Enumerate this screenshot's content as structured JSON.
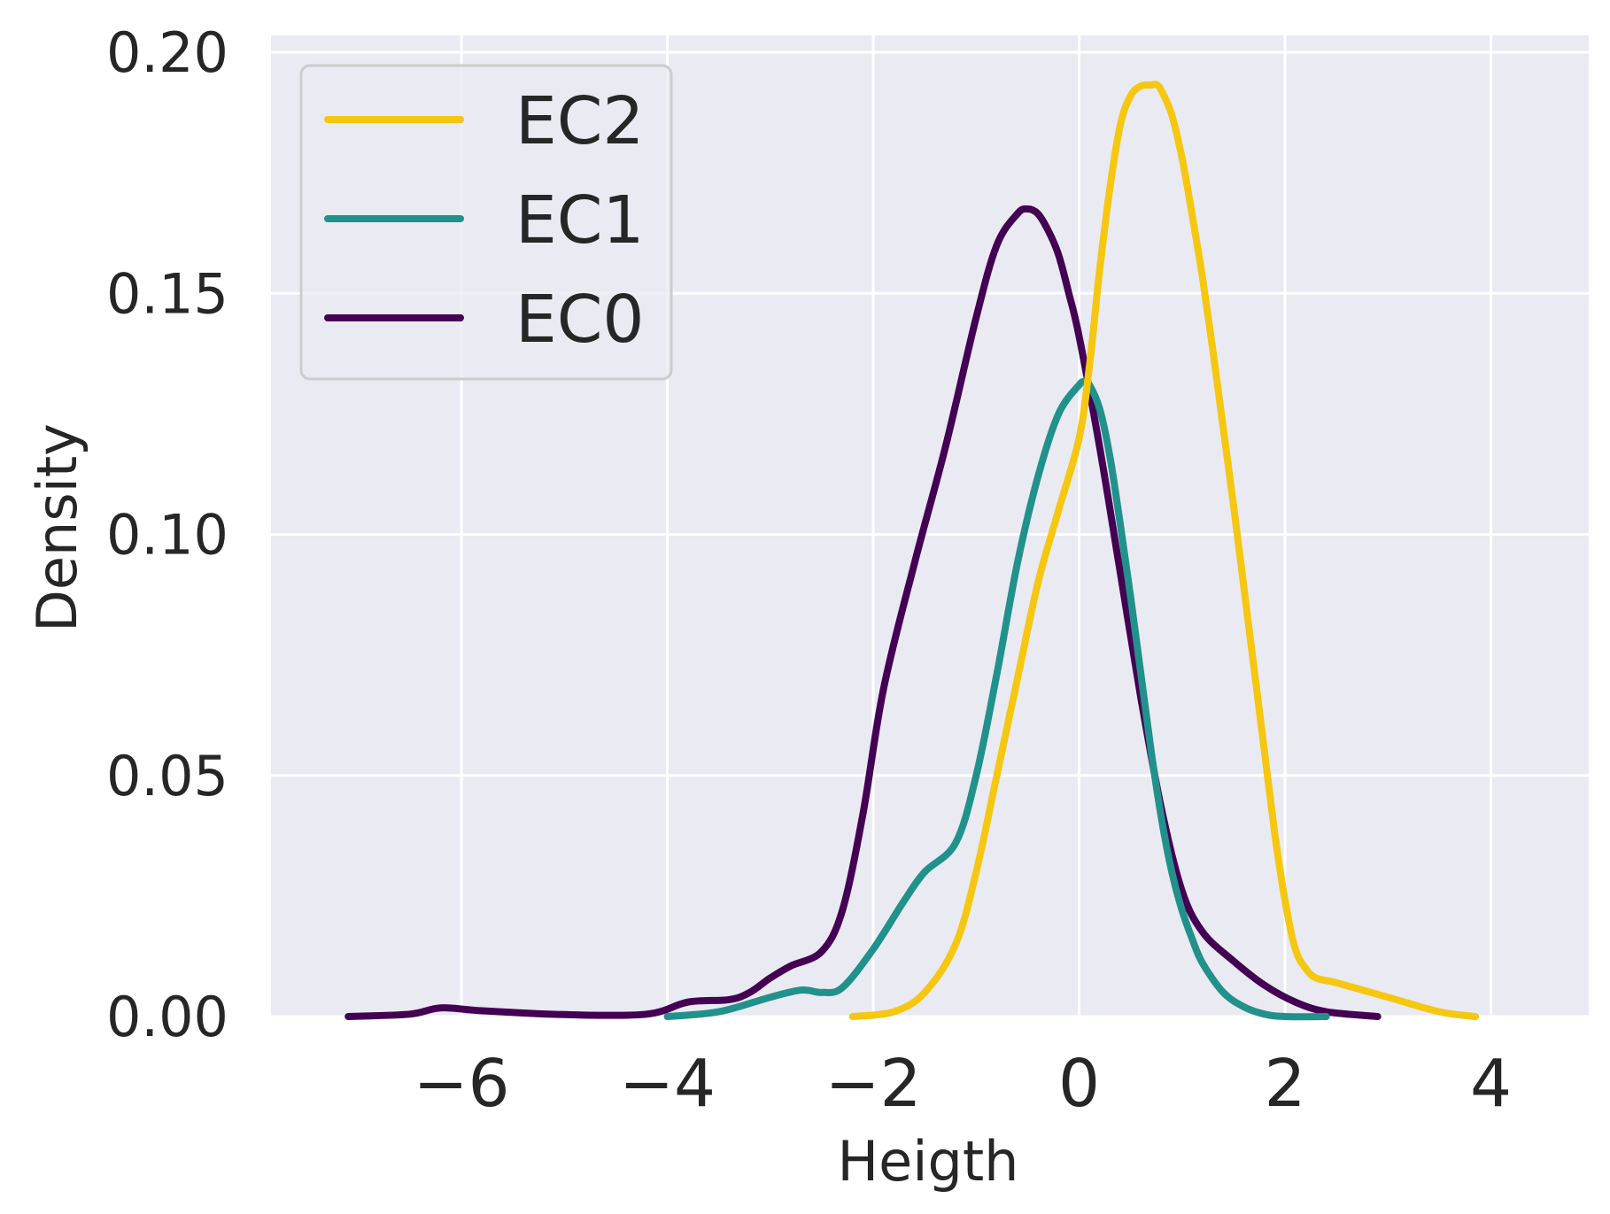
{
  "chart_data": {
    "type": "line",
    "xlabel": "Heigth",
    "ylabel": "Density",
    "xlim": [
      -7.85,
      4.95
    ],
    "ylim": [
      0,
      0.2035
    ],
    "xticks": [
      -6,
      -4,
      -2,
      0,
      2,
      4
    ],
    "xtick_labels": [
      "−6",
      "−4",
      "−2",
      "0",
      "2",
      "4"
    ],
    "yticks": [
      0,
      0.05,
      0.1,
      0.15,
      0.2
    ],
    "ytick_labels": [
      "0.00",
      "0.05",
      "0.10",
      "0.15",
      "0.20"
    ],
    "grid": true,
    "legend_position": "upper-left",
    "colors": {
      "background": "#eaeaf2",
      "grid": "#ffffff",
      "text": "#262626"
    },
    "series": [
      {
        "name": "EC2",
        "color": "#f5c710",
        "x": [
          -2.2,
          -1.8,
          -1.5,
          -1.2,
          -1.0,
          -0.8,
          -0.6,
          -0.4,
          -0.2,
          0.0,
          0.1,
          0.2,
          0.3,
          0.4,
          0.5,
          0.6,
          0.7,
          0.75,
          0.8,
          0.9,
          1.0,
          1.1,
          1.2,
          1.3,
          1.4,
          1.5,
          1.6,
          1.7,
          1.8,
          1.9,
          2.0,
          2.1,
          2.2,
          2.3,
          2.5,
          3.0,
          3.5,
          3.85
        ],
        "y": [
          0.0,
          0.001,
          0.005,
          0.015,
          0.03,
          0.05,
          0.07,
          0.09,
          0.105,
          0.12,
          0.135,
          0.155,
          0.172,
          0.185,
          0.191,
          0.193,
          0.1932,
          0.1933,
          0.192,
          0.187,
          0.178,
          0.166,
          0.153,
          0.138,
          0.122,
          0.106,
          0.089,
          0.072,
          0.055,
          0.038,
          0.024,
          0.014,
          0.01,
          0.008,
          0.007,
          0.004,
          0.001,
          0.0
        ]
      },
      {
        "name": "EC1",
        "color": "#21918c",
        "x": [
          -4.0,
          -3.5,
          -3.0,
          -2.7,
          -2.5,
          -2.3,
          -2.0,
          -1.7,
          -1.5,
          -1.2,
          -1.0,
          -0.8,
          -0.6,
          -0.4,
          -0.2,
          0.0,
          0.05,
          0.1,
          0.2,
          0.3,
          0.4,
          0.5,
          0.6,
          0.7,
          0.8,
          0.9,
          1.0,
          1.1,
          1.2,
          1.4,
          1.6,
          1.8,
          2.0,
          2.4
        ],
        "y": [
          0.0,
          0.001,
          0.004,
          0.0055,
          0.005,
          0.006,
          0.014,
          0.024,
          0.03,
          0.036,
          0.05,
          0.071,
          0.094,
          0.112,
          0.125,
          0.131,
          0.1315,
          0.131,
          0.126,
          0.116,
          0.102,
          0.087,
          0.071,
          0.055,
          0.041,
          0.03,
          0.022,
          0.016,
          0.011,
          0.005,
          0.002,
          0.0005,
          0.0,
          0.0
        ]
      },
      {
        "name": "EC0",
        "color": "#440154",
        "x": [
          -7.1,
          -6.5,
          -6.2,
          -5.8,
          -5.0,
          -4.2,
          -3.8,
          -3.4,
          -3.2,
          -3.0,
          -2.8,
          -2.5,
          -2.3,
          -2.1,
          -1.9,
          -1.6,
          -1.3,
          -1.0,
          -0.8,
          -0.6,
          -0.5,
          -0.4,
          -0.3,
          -0.2,
          -0.1,
          0.0,
          0.2,
          0.4,
          0.6,
          0.8,
          1.0,
          1.2,
          1.5,
          1.8,
          2.1,
          2.4,
          2.9
        ],
        "y": [
          0.0,
          0.0005,
          0.0018,
          0.0012,
          0.0004,
          0.0005,
          0.003,
          0.0035,
          0.005,
          0.008,
          0.0105,
          0.0135,
          0.022,
          0.042,
          0.068,
          0.094,
          0.118,
          0.145,
          0.16,
          0.1665,
          0.1675,
          0.1665,
          0.163,
          0.158,
          0.15,
          0.141,
          0.118,
          0.092,
          0.066,
          0.043,
          0.026,
          0.0175,
          0.0115,
          0.0065,
          0.003,
          0.001,
          0.0
        ]
      }
    ]
  }
}
